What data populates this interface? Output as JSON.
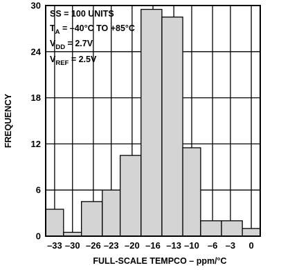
{
  "chart_data": {
    "type": "bar",
    "xlabel": "FULL-SCALE TEMPCO – ppm/°C",
    "ylabel": "FREQUENCY",
    "ylim": [
      0,
      30
    ],
    "yticks": [
      "0",
      "6",
      "12",
      "18",
      "24",
      "30"
    ],
    "xlim": [
      -34.5,
      1.5
    ],
    "xticks": [
      {
        "label": "–33",
        "value": -33
      },
      {
        "label": "–30",
        "value": -30
      },
      {
        "label": "–26",
        "value": -26.5
      },
      {
        "label": "–23",
        "value": -23.5
      },
      {
        "label": "–20",
        "value": -20
      },
      {
        "label": "–16",
        "value": -16.5
      },
      {
        "label": "–13",
        "value": -13
      },
      {
        "label": "–10",
        "value": -10
      },
      {
        "label": "–6",
        "value": -6.5
      },
      {
        "label": "–3",
        "value": -3.5
      },
      {
        "label": "0",
        "value": 0
      }
    ],
    "bin_edges": [
      -34.5,
      -31.5,
      -28.5,
      -25,
      -22,
      -18.5,
      -15,
      -11.5,
      -8.5,
      -5,
      -1.5,
      1.5
    ],
    "values": [
      3.5,
      0.5,
      4.5,
      6,
      10.5,
      29.5,
      28.5,
      11.5,
      2,
      2,
      1
    ],
    "bar_color": "#d4d4d4",
    "grid": true,
    "annotation": {
      "lines": [
        {
          "main": "SS = 100 UNITS",
          "sub": "",
          "rest": ""
        },
        {
          "main": "T",
          "sub": "A",
          "rest": " = –40°C TO +85°C"
        },
        {
          "main": "V",
          "sub": "DD",
          "rest": " = 2.7V"
        },
        {
          "main": "V",
          "sub": "REF",
          "rest": " = 2.5V"
        }
      ]
    }
  }
}
